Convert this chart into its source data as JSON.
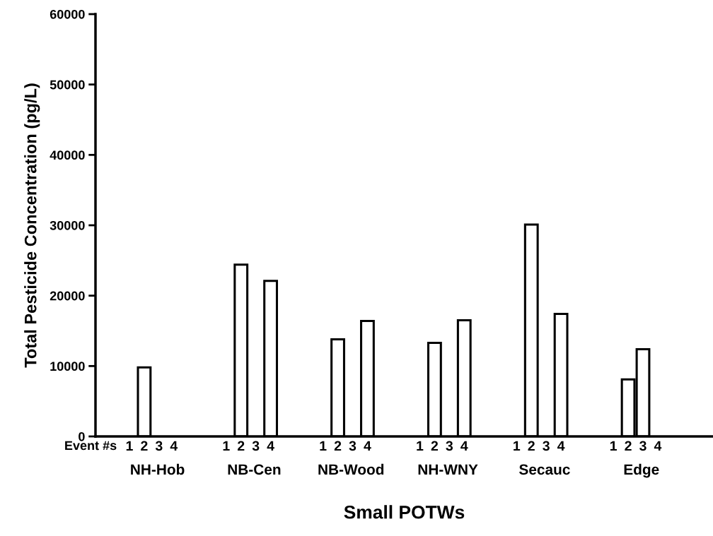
{
  "chart_data": {
    "type": "bar",
    "categories": [
      "NH-Hob",
      "NB-Cen",
      "NB-Wood",
      "NH-WNY",
      "Secauc",
      "Edge"
    ],
    "series": [
      {
        "name": "1",
        "values": [
          null,
          null,
          null,
          null,
          null,
          null
        ]
      },
      {
        "name": "2",
        "color": "#ffffff",
        "values": [
          9800,
          24400,
          13800,
          13300,
          30100,
          8100
        ]
      },
      {
        "name": "3",
        "color": "#ffffff",
        "values": [
          null,
          null,
          null,
          null,
          null,
          12400
        ]
      },
      {
        "name": "4",
        "color": "#ffffff",
        "values": [
          null,
          22100,
          16400,
          16500,
          17400,
          null
        ]
      }
    ],
    "xlabel": "Small POTWs",
    "ylabel": "Total Pesticide Concentration (pg/L)",
    "ylim": [
      0,
      60000
    ],
    "yticks": [
      0,
      10000,
      20000,
      30000,
      40000,
      50000,
      60000
    ],
    "annotations": [
      "Event #s"
    ],
    "grid": false,
    "legend": false
  }
}
